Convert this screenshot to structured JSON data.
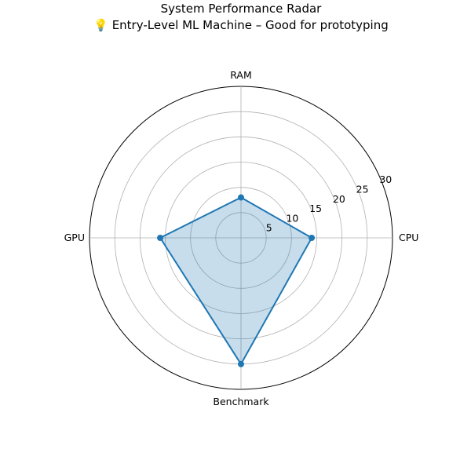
{
  "chart_data": {
    "type": "radar",
    "title": "System Performance Radar",
    "subtitle": "💡 Entry-Level ML Machine – Good for prototyping",
    "axes": [
      "CPU",
      "RAM",
      "GPU",
      "Benchmark"
    ],
    "values": [
      14,
      8,
      16,
      25
    ],
    "rlim": [
      0,
      30
    ],
    "rticks": [
      5,
      10,
      15,
      20,
      25,
      30
    ],
    "grid": true,
    "colors": {
      "line": "#1f77b4",
      "fill": "#1f77b4"
    }
  }
}
